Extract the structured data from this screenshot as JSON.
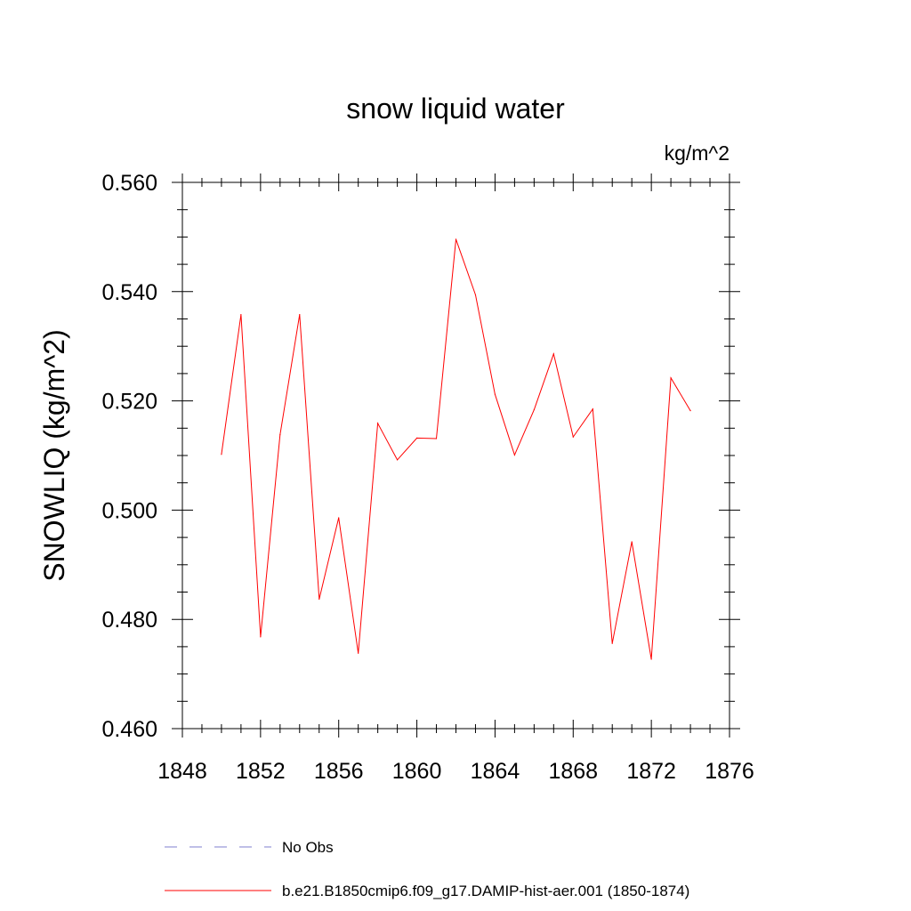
{
  "chart_data": {
    "type": "line",
    "title": "snow liquid water",
    "units": "kg/m^2",
    "ylabel": "SNOWLIQ  (kg/m^2)",
    "xlabel": "",
    "xlim": [
      1848,
      1876
    ],
    "ylim": [
      0.46,
      0.56
    ],
    "x_ticks": [
      "1848",
      "1852",
      "1856",
      "1860",
      "1864",
      "1868",
      "1872",
      "1876"
    ],
    "y_ticks": [
      "0.460",
      "0.480",
      "0.500",
      "0.520",
      "0.540",
      "0.560"
    ],
    "grid": false,
    "legend_position": "bottom",
    "series": [
      {
        "name": "b.e21.B1850cmip6.f09_g17.DAMIP-hist-aer.001 (1850-1874)",
        "color": "#ff0000",
        "style": "solid",
        "x": [
          1850,
          1851,
          1852,
          1853,
          1854,
          1855,
          1856,
          1857,
          1858,
          1859,
          1860,
          1861,
          1862,
          1863,
          1864,
          1865,
          1866,
          1867,
          1868,
          1869,
          1870,
          1871,
          1872,
          1873,
          1874
        ],
        "y": [
          0.5102,
          0.5358,
          0.4768,
          0.5138,
          0.5358,
          0.4837,
          0.4986,
          0.4738,
          0.5159,
          0.5092,
          0.5132,
          0.5131,
          0.5496,
          0.5394,
          0.5212,
          0.5101,
          0.5184,
          0.5286,
          0.5134,
          0.5185,
          0.4756,
          0.4942,
          0.4727,
          0.5242,
          0.5182
        ]
      }
    ],
    "legend": [
      {
        "label": "No Obs",
        "color": "#7f7fcf",
        "style": "dashed"
      },
      {
        "label": "b.e21.B1850cmip6.f09_g17.DAMIP-hist-aer.001 (1850-1874)",
        "color": "#ff0000",
        "style": "solid"
      }
    ]
  }
}
